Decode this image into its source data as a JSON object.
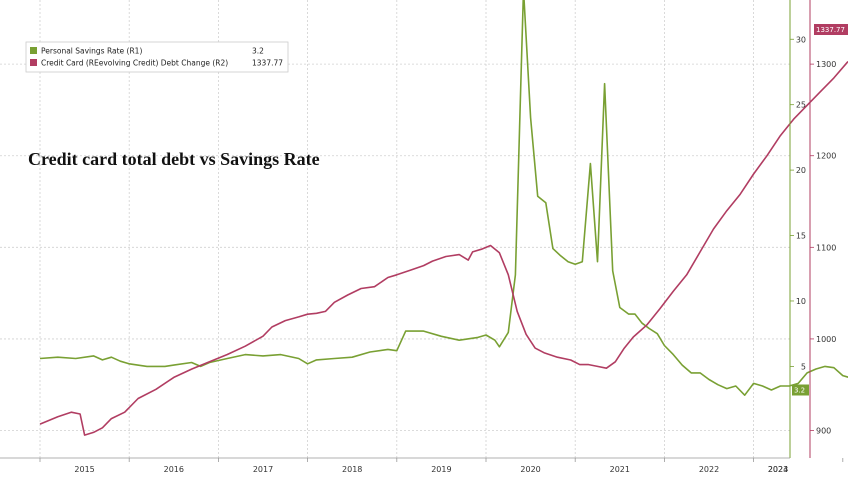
{
  "chart_data": {
    "type": "line",
    "title": "Credit card total debt vs Savings Rate",
    "grid": true,
    "legend_position": "top-left",
    "x_ticks": [
      "2015",
      "2016",
      "2017",
      "2018",
      "2019",
      "2020",
      "2021",
      "2022",
      "2023",
      "2024"
    ],
    "y_left": {
      "ticks": [
        900,
        1000,
        1100,
        1200,
        1300
      ],
      "range": [
        870,
        1370
      ]
    },
    "y_right": {
      "ticks": [
        5,
        10,
        15,
        20,
        25,
        30
      ],
      "range": [
        -2,
        33
      ]
    },
    "colors": {
      "savings": "#79a033",
      "credit": "#b13d62"
    },
    "series": [
      {
        "key": "savings",
        "name": "Personal Savings Rate (R1)",
        "last_value": "3.2",
        "axis": "right",
        "points": [
          [
            2015.0,
            5.6
          ],
          [
            2015.2,
            5.7
          ],
          [
            2015.4,
            5.6
          ],
          [
            2015.6,
            5.8
          ],
          [
            2015.7,
            5.5
          ],
          [
            2015.8,
            5.7
          ],
          [
            2015.9,
            5.4
          ],
          [
            2016.0,
            5.2
          ],
          [
            2016.2,
            5.0
          ],
          [
            2016.4,
            5.0
          ],
          [
            2016.5,
            5.1
          ],
          [
            2016.7,
            5.3
          ],
          [
            2016.8,
            5.0
          ],
          [
            2016.9,
            5.3
          ],
          [
            2017.1,
            5.6
          ],
          [
            2017.3,
            5.9
          ],
          [
            2017.5,
            5.8
          ],
          [
            2017.7,
            5.9
          ],
          [
            2017.9,
            5.6
          ],
          [
            2018.0,
            5.2
          ],
          [
            2018.1,
            5.5
          ],
          [
            2018.3,
            5.6
          ],
          [
            2018.5,
            5.7
          ],
          [
            2018.7,
            6.1
          ],
          [
            2018.9,
            6.3
          ],
          [
            2019.0,
            6.2
          ],
          [
            2019.1,
            7.7
          ],
          [
            2019.3,
            7.7
          ],
          [
            2019.5,
            7.3
          ],
          [
            2019.7,
            7.0
          ],
          [
            2019.9,
            7.2
          ],
          [
            2020.0,
            7.4
          ],
          [
            2020.1,
            7.0
          ],
          [
            2020.15,
            6.5
          ],
          [
            2020.25,
            7.6
          ],
          [
            2020.33,
            12.0
          ],
          [
            2020.42,
            33.8
          ],
          [
            2020.5,
            24.0
          ],
          [
            2020.58,
            18.0
          ],
          [
            2020.67,
            17.5
          ],
          [
            2020.75,
            14.0
          ],
          [
            2020.83,
            13.5
          ],
          [
            2020.92,
            13.0
          ],
          [
            2021.0,
            12.8
          ],
          [
            2021.08,
            13.0
          ],
          [
            2021.17,
            20.5
          ],
          [
            2021.25,
            13.0
          ],
          [
            2021.33,
            26.6
          ],
          [
            2021.42,
            12.3
          ],
          [
            2021.5,
            9.5
          ],
          [
            2021.6,
            9.0
          ],
          [
            2021.67,
            9.0
          ],
          [
            2021.75,
            8.3
          ],
          [
            2021.83,
            7.9
          ],
          [
            2021.92,
            7.5
          ],
          [
            2022.0,
            6.6
          ],
          [
            2022.1,
            5.9
          ],
          [
            2022.2,
            5.1
          ],
          [
            2022.3,
            4.5
          ],
          [
            2022.4,
            4.5
          ],
          [
            2022.5,
            4.0
          ],
          [
            2022.6,
            3.6
          ],
          [
            2022.7,
            3.3
          ],
          [
            2022.8,
            3.5
          ],
          [
            2022.9,
            2.8
          ],
          [
            2023.0,
            3.7
          ],
          [
            2023.1,
            3.5
          ],
          [
            2023.2,
            3.2
          ],
          [
            2023.3,
            3.5
          ],
          [
            2023.4,
            3.5
          ],
          [
            2023.5,
            3.7
          ],
          [
            2023.6,
            4.5
          ],
          [
            2023.7,
            4.8
          ],
          [
            2023.8,
            5.0
          ],
          [
            2023.9,
            4.9
          ],
          [
            2024.0,
            4.3
          ],
          [
            2024.1,
            4.1
          ],
          [
            2024.2,
            4.3
          ],
          [
            2024.3,
            4.2
          ],
          [
            2024.4,
            4.0
          ],
          [
            2024.5,
            3.5
          ],
          [
            2024.58,
            3.2
          ]
        ]
      },
      {
        "key": "credit",
        "name": "Credit Card (REevolving Credit) Debt Change (R2)",
        "last_value": "1337.77",
        "axis": "left",
        "points": [
          [
            2015.0,
            907
          ],
          [
            2015.2,
            915
          ],
          [
            2015.35,
            920
          ],
          [
            2015.45,
            918
          ],
          [
            2015.5,
            895
          ],
          [
            2015.6,
            898
          ],
          [
            2015.7,
            903
          ],
          [
            2015.8,
            913
          ],
          [
            2015.95,
            920
          ],
          [
            2016.1,
            935
          ],
          [
            2016.3,
            945
          ],
          [
            2016.5,
            958
          ],
          [
            2016.7,
            967
          ],
          [
            2016.9,
            975
          ],
          [
            2017.1,
            983
          ],
          [
            2017.3,
            992
          ],
          [
            2017.5,
            1003
          ],
          [
            2017.6,
            1013
          ],
          [
            2017.75,
            1020
          ],
          [
            2017.9,
            1024
          ],
          [
            2018.0,
            1027
          ],
          [
            2018.1,
            1028
          ],
          [
            2018.2,
            1030
          ],
          [
            2018.3,
            1040
          ],
          [
            2018.45,
            1048
          ],
          [
            2018.6,
            1055
          ],
          [
            2018.75,
            1057
          ],
          [
            2018.9,
            1067
          ],
          [
            2019.0,
            1070
          ],
          [
            2019.15,
            1075
          ],
          [
            2019.3,
            1080
          ],
          [
            2019.4,
            1085
          ],
          [
            2019.55,
            1090
          ],
          [
            2019.7,
            1092
          ],
          [
            2019.8,
            1086
          ],
          [
            2019.85,
            1095
          ],
          [
            2019.95,
            1098
          ],
          [
            2020.05,
            1102
          ],
          [
            2020.15,
            1094
          ],
          [
            2020.25,
            1070
          ],
          [
            2020.35,
            1030
          ],
          [
            2020.45,
            1005
          ],
          [
            2020.55,
            990
          ],
          [
            2020.65,
            985
          ],
          [
            2020.8,
            980
          ],
          [
            2020.95,
            977
          ],
          [
            2021.05,
            972
          ],
          [
            2021.15,
            972
          ],
          [
            2021.25,
            970
          ],
          [
            2021.35,
            968
          ],
          [
            2021.45,
            975
          ],
          [
            2021.55,
            990
          ],
          [
            2021.65,
            1002
          ],
          [
            2021.8,
            1015
          ],
          [
            2021.95,
            1033
          ],
          [
            2022.1,
            1052
          ],
          [
            2022.25,
            1070
          ],
          [
            2022.4,
            1095
          ],
          [
            2022.55,
            1120
          ],
          [
            2022.7,
            1140
          ],
          [
            2022.85,
            1158
          ],
          [
            2023.0,
            1180
          ],
          [
            2023.15,
            1200
          ],
          [
            2023.3,
            1222
          ],
          [
            2023.45,
            1240
          ],
          [
            2023.6,
            1255
          ],
          [
            2023.75,
            1270
          ],
          [
            2023.9,
            1285
          ],
          [
            2024.05,
            1302
          ],
          [
            2024.2,
            1312
          ],
          [
            2024.35,
            1322
          ],
          [
            2024.5,
            1334
          ],
          [
            2024.58,
            1337.77
          ]
        ]
      }
    ]
  }
}
